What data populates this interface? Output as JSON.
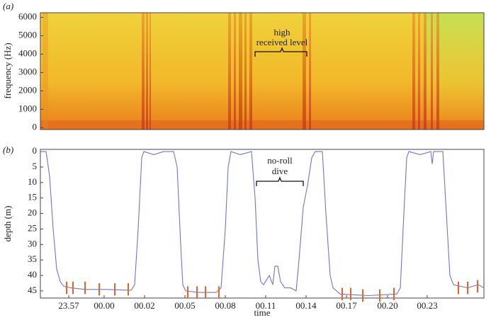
{
  "chart_data": [
    {
      "type": "spectrogram",
      "panel_label": "(a)",
      "ylabel": "frequency (Hz)",
      "ylim": [
        -100,
        6250
      ],
      "yticks": [
        0,
        1000,
        2000,
        3000,
        4000,
        5000,
        6000
      ],
      "annotation": [
        "high",
        "received level"
      ]
    },
    {
      "type": "line",
      "panel_label": "(b)",
      "xlabel": "time",
      "ylabel": "depth (m)",
      "inverted": true,
      "xlim": [
        -4.5,
        26.8
      ],
      "xticks": [
        {
          "value": -2.5,
          "label": "23.57"
        },
        {
          "value": 0,
          "label": "00.00"
        },
        {
          "value": 2.85,
          "label": "00.02"
        },
        {
          "value": 5.7,
          "label": "00.05"
        },
        {
          "value": 8.55,
          "label": "00.08"
        },
        {
          "value": 11.4,
          "label": "00.11"
        },
        {
          "value": 14.25,
          "label": "00.14"
        },
        {
          "value": 17.1,
          "label": "00.17"
        },
        {
          "value": 20,
          "label": "00.20"
        },
        {
          "value": 22.8,
          "label": "00.23"
        }
      ],
      "ylim": [
        -0.7,
        47.3
      ],
      "yticks": [
        0,
        5,
        10,
        15,
        20,
        25,
        30,
        35,
        40,
        45
      ],
      "series": [
        {
          "color": "#6f74d6",
          "x": [
            -4.5,
            -4.1,
            -3.85,
            -3.6,
            -3.35,
            -3.1,
            -2.85,
            -2.35,
            -1.35,
            0.15,
            1.9,
            2.15,
            2.4,
            2.65,
            2.8,
            3.5,
            4.2,
            4.9,
            5.15,
            5.4,
            5.55,
            5.75,
            6.65,
            7.9,
            8.25,
            8.55,
            8.75,
            8.95,
            9.6,
            10.4,
            10.65,
            10.85,
            11.05,
            11.25,
            11.65,
            11.9,
            12.05,
            12.25,
            12.45,
            12.75,
            13.15,
            13.55,
            13.75,
            14.05,
            14.35,
            14.65,
            14.9,
            15.4,
            15.65,
            15.95,
            16.15,
            16.65,
            18.65,
            20.65,
            20.9,
            21.15,
            21.35,
            21.5,
            22.3,
            23.05,
            23.15,
            23.25,
            23.9,
            24.15,
            24.4,
            24.65,
            25.65,
            26.4,
            26.8
          ],
          "values": [
            0,
            0,
            8,
            25,
            38,
            42,
            43.5,
            44,
            44.5,
            44.5,
            44.8,
            43,
            25,
            2,
            0,
            1,
            0,
            0,
            5,
            30,
            43,
            45,
            45.5,
            45.5,
            44,
            25,
            5,
            0,
            1,
            0,
            15,
            35,
            42,
            43,
            40,
            43,
            37,
            37,
            42,
            44,
            44,
            45,
            35,
            18,
            11,
            2,
            0,
            0,
            20,
            40,
            44,
            46,
            46.5,
            46,
            44,
            20,
            2,
            0,
            1,
            0,
            4,
            0,
            0,
            20,
            40,
            43,
            44,
            43,
            44
          ]
        }
      ],
      "events": {
        "color": "#e8632a",
        "x": [
          -2.65,
          -2.2,
          -1.35,
          -0.35,
          0.75,
          1.7,
          5.9,
          6.55,
          7.15,
          8.1,
          16.8,
          17.4,
          18.25,
          19.45,
          20.45,
          25,
          25.65,
          26.35
        ],
        "values": [
          44,
          44,
          44,
          44.5,
          44.5,
          44.5,
          45.5,
          45.5,
          45.5,
          45.5,
          46,
          46,
          46.5,
          46.5,
          46,
          44,
          44,
          43.5
        ]
      },
      "annotation": [
        "no-roll",
        "dive"
      ]
    }
  ]
}
